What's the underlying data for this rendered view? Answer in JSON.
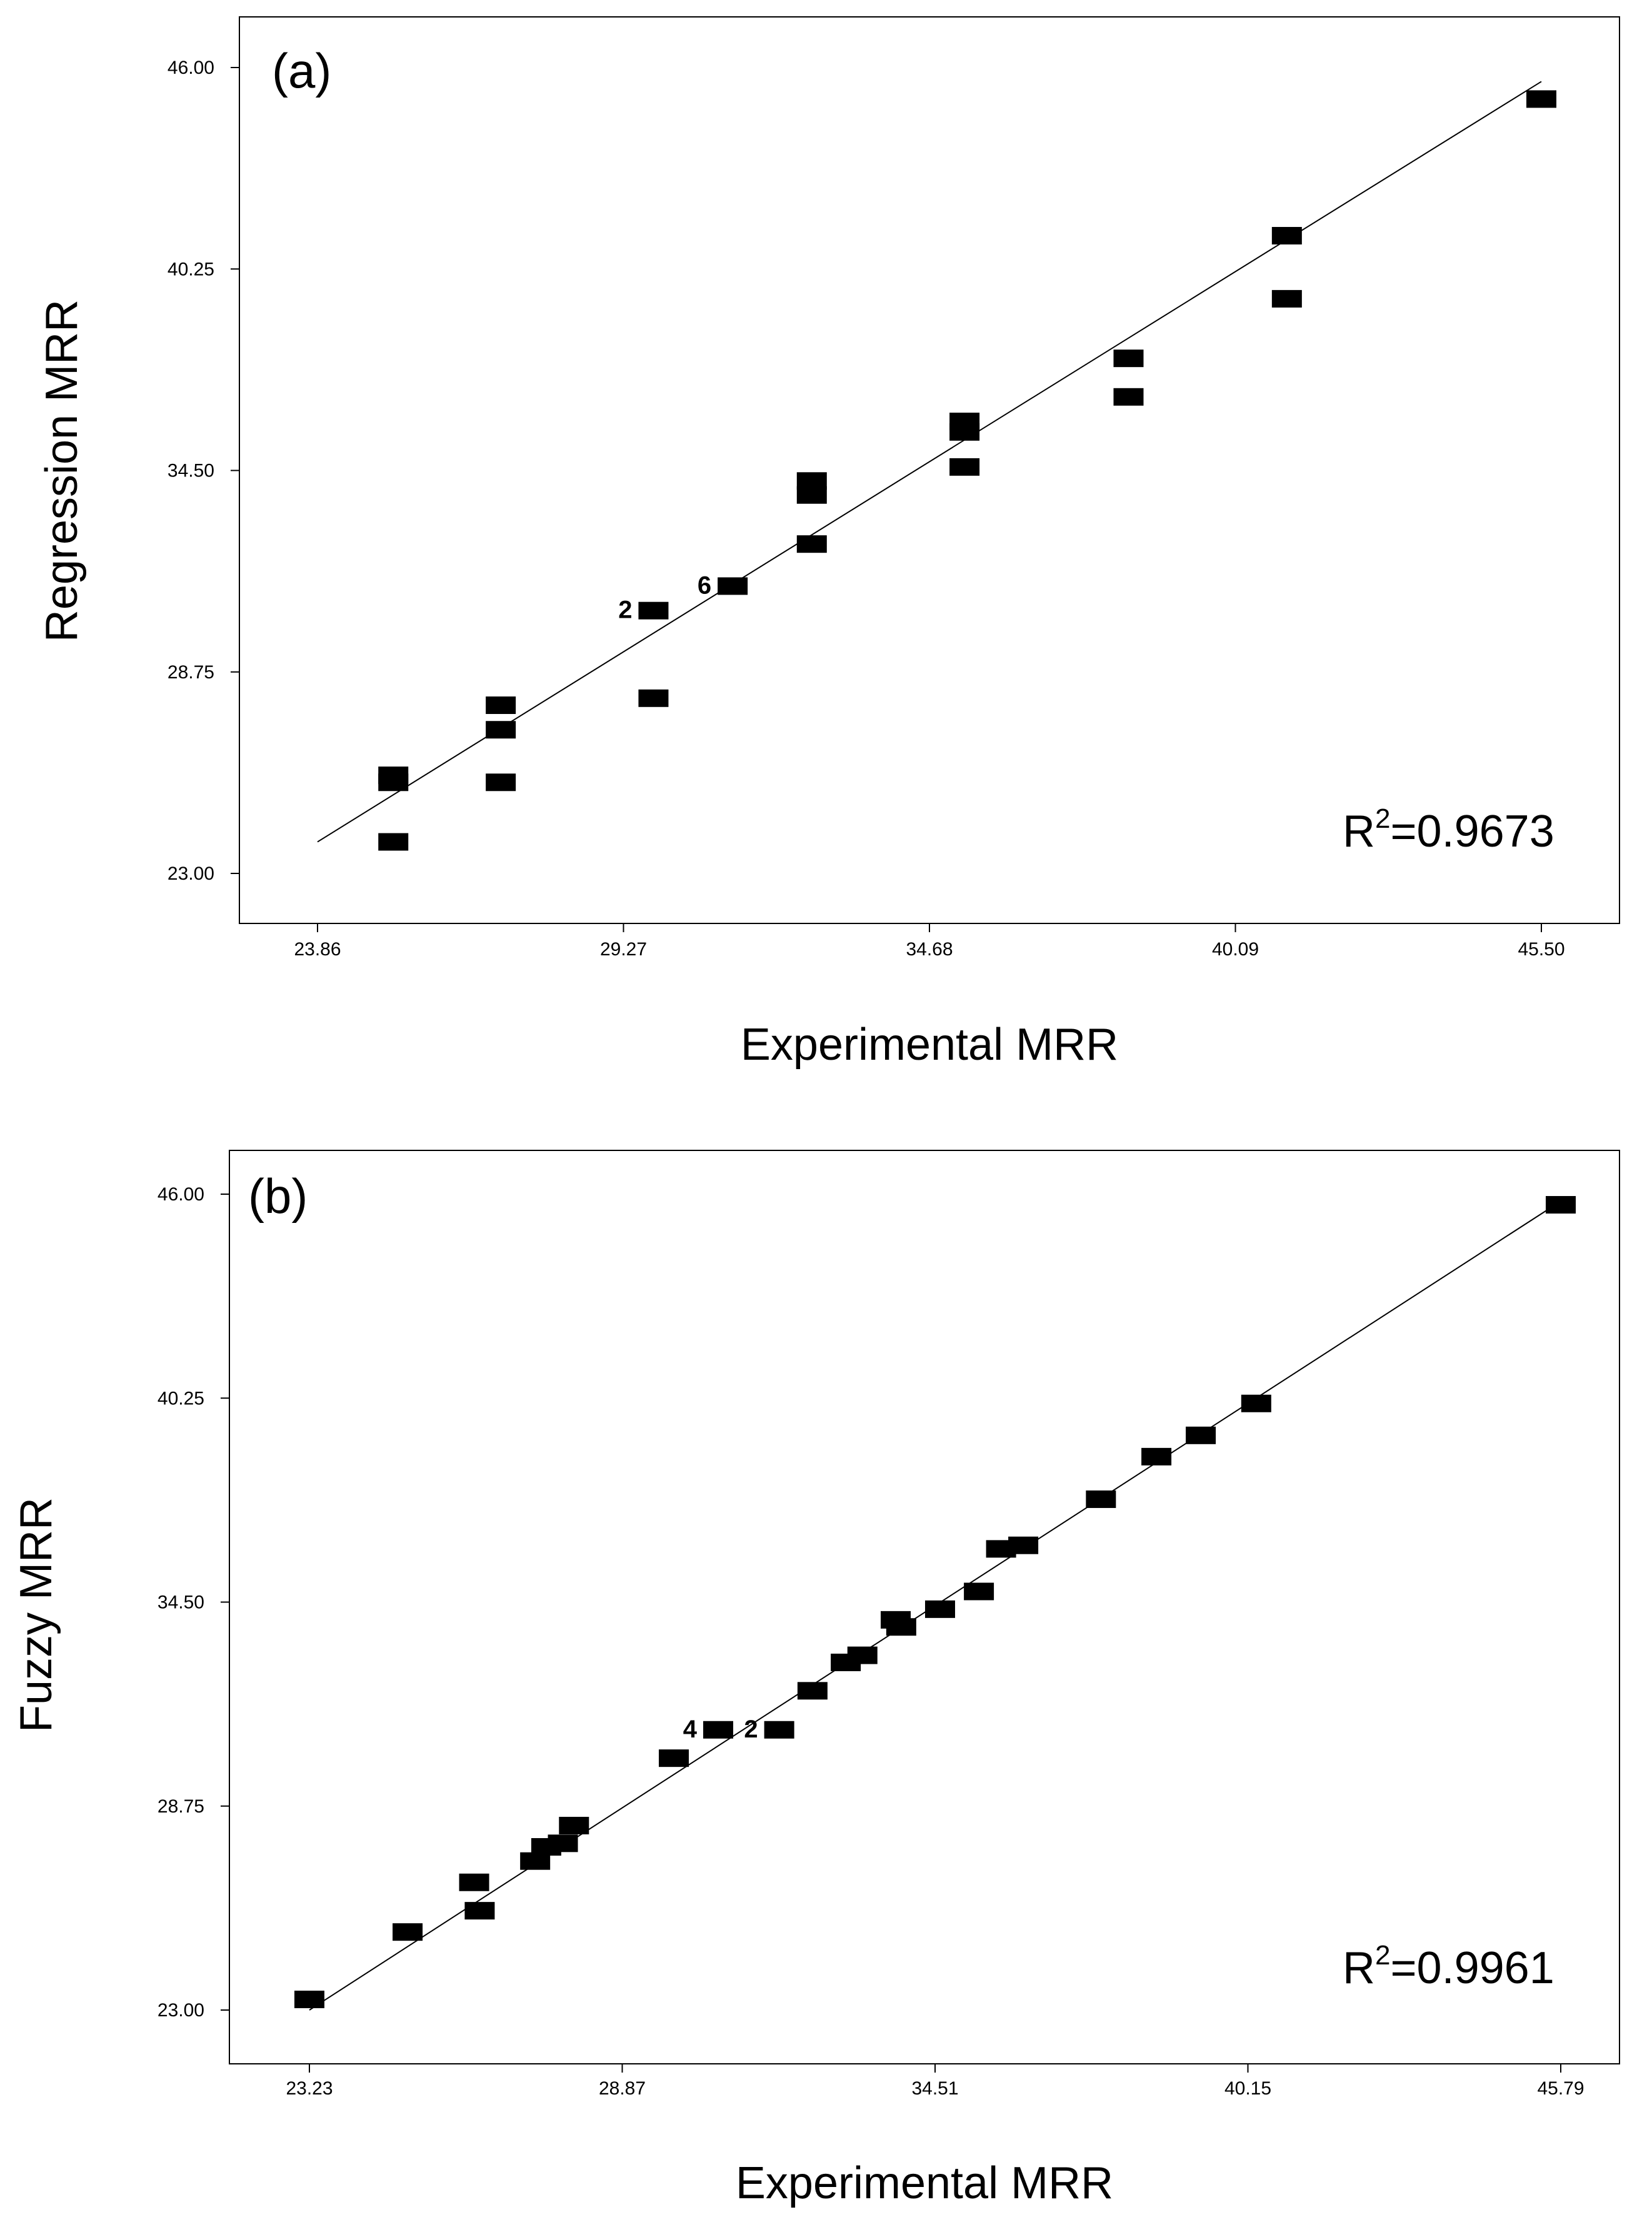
{
  "chart_data": [
    {
      "type": "scatter",
      "panel_label": "(a)",
      "xlabel": "Experimental MRR",
      "ylabel": "Regression MRR",
      "xlim": [
        23.86,
        45.5
      ],
      "ylim": [
        23.0,
        46.0
      ],
      "xticks": [
        "23.86",
        "29.27",
        "34.68",
        "40.09",
        "45.50"
      ],
      "yticks": [
        "23.00",
        "28.75",
        "34.50",
        "40.25",
        "46.00"
      ],
      "r2": {
        "label": "R",
        "sup": "2",
        "value": "=0.9673"
      },
      "fit_line": {
        "x": [
          23.86,
          45.5
        ],
        "y": [
          23.9,
          45.6
        ]
      },
      "points": [
        {
          "x": 45.5,
          "y": 45.1
        },
        {
          "x": 41.0,
          "y": 41.2
        },
        {
          "x": 41.0,
          "y": 39.4
        },
        {
          "x": 38.2,
          "y": 37.7
        },
        {
          "x": 38.2,
          "y": 36.6
        },
        {
          "x": 35.3,
          "y": 35.6
        },
        {
          "x": 35.3,
          "y": 35.9
        },
        {
          "x": 35.3,
          "y": 34.6
        },
        {
          "x": 32.6,
          "y": 34.2
        },
        {
          "x": 32.6,
          "y": 33.8
        },
        {
          "x": 32.6,
          "y": 32.4
        },
        {
          "x": 31.2,
          "y": 31.2
        },
        {
          "x": 29.8,
          "y": 30.5
        },
        {
          "x": 29.8,
          "y": 28.0
        },
        {
          "x": 27.1,
          "y": 27.8
        },
        {
          "x": 27.1,
          "y": 27.1
        },
        {
          "x": 27.1,
          "y": 25.6
        },
        {
          "x": 25.2,
          "y": 25.8
        },
        {
          "x": 25.2,
          "y": 25.6
        },
        {
          "x": 25.2,
          "y": 23.9
        }
      ],
      "annotations": [
        {
          "text": "2",
          "x": 29.8,
          "y": 30.5
        },
        {
          "text": "6",
          "x": 31.2,
          "y": 31.2
        }
      ]
    },
    {
      "type": "scatter",
      "panel_label": "(b)",
      "xlabel": "Experimental MRR",
      "ylabel": "Fuzzy MRR",
      "xlim": [
        23.23,
        45.79
      ],
      "ylim": [
        23.0,
        46.0
      ],
      "xticks": [
        "23.23",
        "28.87",
        "34.51",
        "40.15",
        "45.79"
      ],
      "yticks": [
        "23.00",
        "28.75",
        "34.50",
        "40.25",
        "46.00"
      ],
      "r2": {
        "label": "R",
        "sup": "2",
        "value": "=0.9961"
      },
      "fit_line": {
        "x": [
          23.23,
          45.79
        ],
        "y": [
          23.0,
          45.8
        ]
      },
      "points": [
        {
          "x": 45.79,
          "y": 45.7
        },
        {
          "x": 40.3,
          "y": 40.1
        },
        {
          "x": 39.3,
          "y": 39.2
        },
        {
          "x": 38.5,
          "y": 38.6
        },
        {
          "x": 37.5,
          "y": 37.4
        },
        {
          "x": 36.1,
          "y": 36.1
        },
        {
          "x": 35.7,
          "y": 36.0
        },
        {
          "x": 35.3,
          "y": 34.8
        },
        {
          "x": 34.6,
          "y": 34.3
        },
        {
          "x": 33.8,
          "y": 34.0
        },
        {
          "x": 33.9,
          "y": 33.8
        },
        {
          "x": 33.2,
          "y": 33.0
        },
        {
          "x": 32.9,
          "y": 32.8
        },
        {
          "x": 32.3,
          "y": 32.0
        },
        {
          "x": 31.7,
          "y": 30.9
        },
        {
          "x": 30.6,
          "y": 30.9
        },
        {
          "x": 29.8,
          "y": 30.1
        },
        {
          "x": 28.0,
          "y": 28.2
        },
        {
          "x": 27.8,
          "y": 27.7
        },
        {
          "x": 27.5,
          "y": 27.6
        },
        {
          "x": 27.3,
          "y": 27.2
        },
        {
          "x": 26.2,
          "y": 26.6
        },
        {
          "x": 26.3,
          "y": 25.8
        },
        {
          "x": 25.0,
          "y": 25.2
        },
        {
          "x": 23.23,
          "y": 23.3
        }
      ],
      "annotations": [
        {
          "text": "4",
          "x": 30.6,
          "y": 30.9
        },
        {
          "text": "2",
          "x": 31.7,
          "y": 30.9
        }
      ]
    }
  ]
}
